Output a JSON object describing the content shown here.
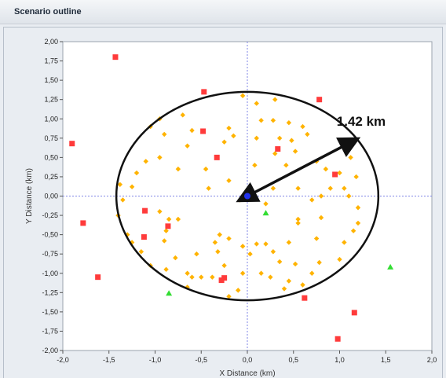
{
  "window": {
    "title": "Scenario outline"
  },
  "chart_data": {
    "type": "scatter",
    "title": "",
    "xlabel": "X Distance (km)",
    "ylabel": "Y Distance (km)",
    "xlim": [
      -2.0,
      2.0
    ],
    "ylim": [
      -2.0,
      2.0
    ],
    "xticks": [
      "-2,0",
      "-1,5",
      "-1,0",
      "-0,5",
      "0,0",
      "0,5",
      "1,0",
      "1,5",
      "2,0"
    ],
    "yticks": [
      "2,00",
      "1,75",
      "1,50",
      "1,25",
      "1,00",
      "0,75",
      "0,50",
      "0,25",
      "0,00",
      "-0,25",
      "-0,50",
      "-0,75",
      "-1,00",
      "-1,25",
      "-1,50",
      "-1,75",
      "-2,00"
    ],
    "grid": false,
    "crosshair_lines_at_origin": true,
    "circle": {
      "center": [
        0.0,
        0.0
      ],
      "radius_x_km": 1.42,
      "radius_y_km": 1.35,
      "color": "#111111"
    },
    "annotation": {
      "text": "1.42 km",
      "arrow_from": [
        0.0,
        0.0
      ],
      "arrow_to": [
        1.2,
        0.75
      ]
    },
    "colors": {
      "orange": "#ffb300",
      "red": "#ff3b3b",
      "green": "#33dd33",
      "blue": "#2233ee"
    },
    "series": [
      {
        "marker": "square",
        "color": "#ff3b3b",
        "points": [
          [
            -1.43,
            1.8
          ],
          [
            -0.47,
            1.35
          ],
          [
            0.78,
            1.25
          ],
          [
            -1.9,
            0.68
          ],
          [
            -0.48,
            0.84
          ],
          [
            0.33,
            0.61
          ],
          [
            -0.33,
            0.5
          ],
          [
            0.95,
            0.28
          ],
          [
            -1.78,
            -0.35
          ],
          [
            -1.11,
            -0.19
          ],
          [
            -1.12,
            -0.53
          ],
          [
            -0.86,
            -0.39
          ],
          [
            -1.62,
            -1.05
          ],
          [
            -0.25,
            -1.06
          ],
          [
            -0.28,
            -1.09
          ],
          [
            0.62,
            -1.32
          ],
          [
            1.16,
            -1.51
          ],
          [
            0.98,
            -1.85
          ]
        ]
      },
      {
        "marker": "diamond",
        "color": "#ffb300",
        "points": [
          [
            -0.05,
            1.3
          ],
          [
            0.1,
            1.2
          ],
          [
            0.3,
            1.25
          ],
          [
            -0.7,
            1.05
          ],
          [
            -0.95,
            1.0
          ],
          [
            0.15,
            0.98
          ],
          [
            0.28,
            0.98
          ],
          [
            -1.05,
            0.9
          ],
          [
            -0.6,
            0.85
          ],
          [
            -0.2,
            0.88
          ],
          [
            0.45,
            0.95
          ],
          [
            0.6,
            0.9
          ],
          [
            -0.9,
            0.8
          ],
          [
            -0.15,
            0.78
          ],
          [
            0.1,
            0.75
          ],
          [
            0.35,
            0.75
          ],
          [
            0.48,
            0.72
          ],
          [
            0.65,
            0.8
          ],
          [
            -1.1,
            0.45
          ],
          [
            -0.95,
            0.5
          ],
          [
            -0.65,
            0.65
          ],
          [
            -0.25,
            0.7
          ],
          [
            0.52,
            0.58
          ],
          [
            0.75,
            0.45
          ],
          [
            -1.2,
            0.3
          ],
          [
            -0.75,
            0.35
          ],
          [
            -0.45,
            0.35
          ],
          [
            0.08,
            0.4
          ],
          [
            0.3,
            0.55
          ],
          [
            0.42,
            0.4
          ],
          [
            0.85,
            0.35
          ],
          [
            1.0,
            0.3
          ],
          [
            1.12,
            0.5
          ],
          [
            -1.38,
            0.15
          ],
          [
            -1.25,
            0.12
          ],
          [
            -0.42,
            0.1
          ],
          [
            -0.2,
            0.2
          ],
          [
            0.28,
            0.1
          ],
          [
            0.55,
            0.1
          ],
          [
            0.9,
            0.1
          ],
          [
            1.05,
            0.1
          ],
          [
            1.18,
            0.25
          ],
          [
            -1.35,
            -0.05
          ],
          [
            -0.95,
            -0.2
          ],
          [
            -0.08,
            -0.05
          ],
          [
            0.2,
            -0.1
          ],
          [
            0.7,
            -0.05
          ],
          [
            0.8,
            0.0
          ],
          [
            1.1,
            0.0
          ],
          [
            -1.4,
            -0.25
          ],
          [
            -0.85,
            -0.3
          ],
          [
            -0.75,
            -0.3
          ],
          [
            0.55,
            -0.3
          ],
          [
            0.8,
            -0.28
          ],
          [
            1.2,
            -0.15
          ],
          [
            1.2,
            -0.35
          ],
          [
            -1.3,
            -0.5
          ],
          [
            -0.88,
            -0.45
          ],
          [
            -0.3,
            -0.5
          ],
          [
            -0.2,
            -0.55
          ],
          [
            0.55,
            -0.35
          ],
          [
            1.15,
            -0.45
          ],
          [
            -1.25,
            -0.6
          ],
          [
            -0.9,
            -0.58
          ],
          [
            -0.35,
            -0.6
          ],
          [
            -0.05,
            -0.65
          ],
          [
            0.1,
            -0.62
          ],
          [
            0.2,
            -0.62
          ],
          [
            0.45,
            -0.6
          ],
          [
            0.75,
            -0.55
          ],
          [
            1.05,
            -0.6
          ],
          [
            -1.15,
            -0.72
          ],
          [
            -0.78,
            -0.8
          ],
          [
            -0.55,
            -0.75
          ],
          [
            -0.32,
            -0.72
          ],
          [
            -0.25,
            -0.9
          ],
          [
            0.03,
            -0.75
          ],
          [
            0.28,
            -0.72
          ],
          [
            0.35,
            -0.85
          ],
          [
            0.52,
            -0.88
          ],
          [
            0.78,
            -0.86
          ],
          [
            1.0,
            -0.82
          ],
          [
            -1.05,
            -0.9
          ],
          [
            -0.88,
            -0.95
          ],
          [
            -0.65,
            -1.0
          ],
          [
            -0.6,
            -1.05
          ],
          [
            -0.5,
            -1.05
          ],
          [
            -0.38,
            -1.05
          ],
          [
            -0.05,
            -1.0
          ],
          [
            0.15,
            -1.0
          ],
          [
            0.25,
            -1.05
          ],
          [
            0.45,
            -1.1
          ],
          [
            0.7,
            -1.0
          ],
          [
            -0.65,
            -1.18
          ],
          [
            -0.2,
            -1.3
          ],
          [
            -0.1,
            -1.22
          ],
          [
            0.4,
            -1.2
          ],
          [
            0.6,
            -1.15
          ]
        ]
      },
      {
        "marker": "triangle",
        "color": "#33dd33",
        "points": [
          [
            0.2,
            -0.22
          ],
          [
            1.55,
            -0.92
          ],
          [
            -0.85,
            -1.26
          ]
        ]
      },
      {
        "marker": "circle",
        "color": "#2233ee",
        "points": [
          [
            0.0,
            0.0
          ]
        ]
      }
    ]
  }
}
